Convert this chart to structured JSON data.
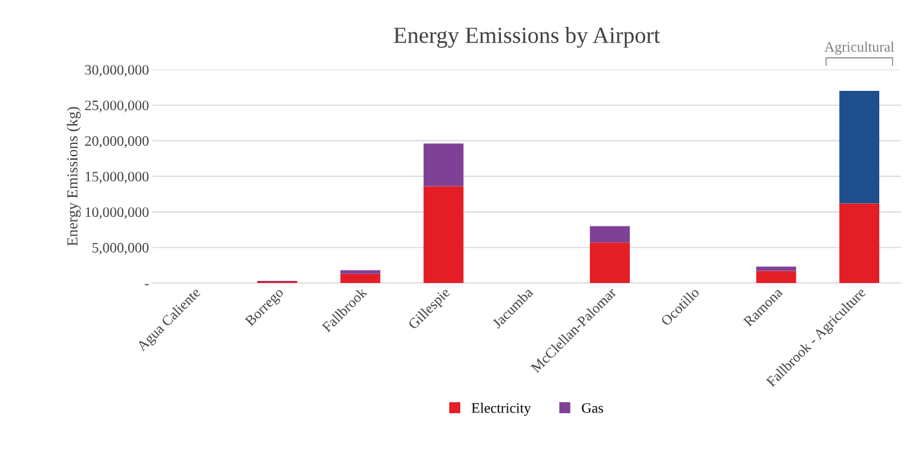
{
  "chart_data": {
    "type": "bar",
    "title": "Energy Emissions by Airport",
    "ylabel": "Energy Emissions (kg)",
    "categories": [
      "Agua Caliente",
      "Borrego",
      "Fallbrook",
      "Gillespie",
      "Jacumba",
      "McClellan-Palomar",
      "Ocotillo",
      "Ramona",
      "Fallbrook - Agriculture"
    ],
    "stacked": true,
    "series": [
      {
        "name": "Electricity",
        "color": "#e41e26",
        "colors": [
          "#e41e26",
          "#e41e26",
          "#e41e26",
          "#e41e26",
          "#e41e26",
          "#e41e26",
          "#e41e26",
          "#e41e26",
          "#e41e26"
        ],
        "values": [
          0,
          200000,
          1300000,
          13600000,
          null,
          5700000,
          0,
          1700000,
          11200000
        ]
      },
      {
        "name": "Gas",
        "color": "#7f4196",
        "colors": [
          "#7f4196",
          "#7f4196",
          "#7f4196",
          "#7f4196",
          "#7f4196",
          "#7f4196",
          "#7f4196",
          "#7f4196",
          "#1f4e8c"
        ],
        "values": [
          0,
          100000,
          500000,
          6000000,
          0,
          2300000,
          0,
          600000,
          15800000
        ]
      }
    ],
    "ylim": [
      0,
      30000000
    ],
    "yticks": [
      {
        "value": 0,
        "label": "-"
      },
      {
        "value": 5000000,
        "label": "5,000,000"
      },
      {
        "value": 10000000,
        "label": "10,000,000"
      },
      {
        "value": 15000000,
        "label": "15,000,000"
      },
      {
        "value": 20000000,
        "label": "20,000,000"
      },
      {
        "value": 25000000,
        "label": "25,000,000"
      },
      {
        "value": 30000000,
        "label": "30,000,000"
      }
    ],
    "grid": "y",
    "legend": "bottom",
    "annotations": [
      "Agricultural"
    ]
  }
}
